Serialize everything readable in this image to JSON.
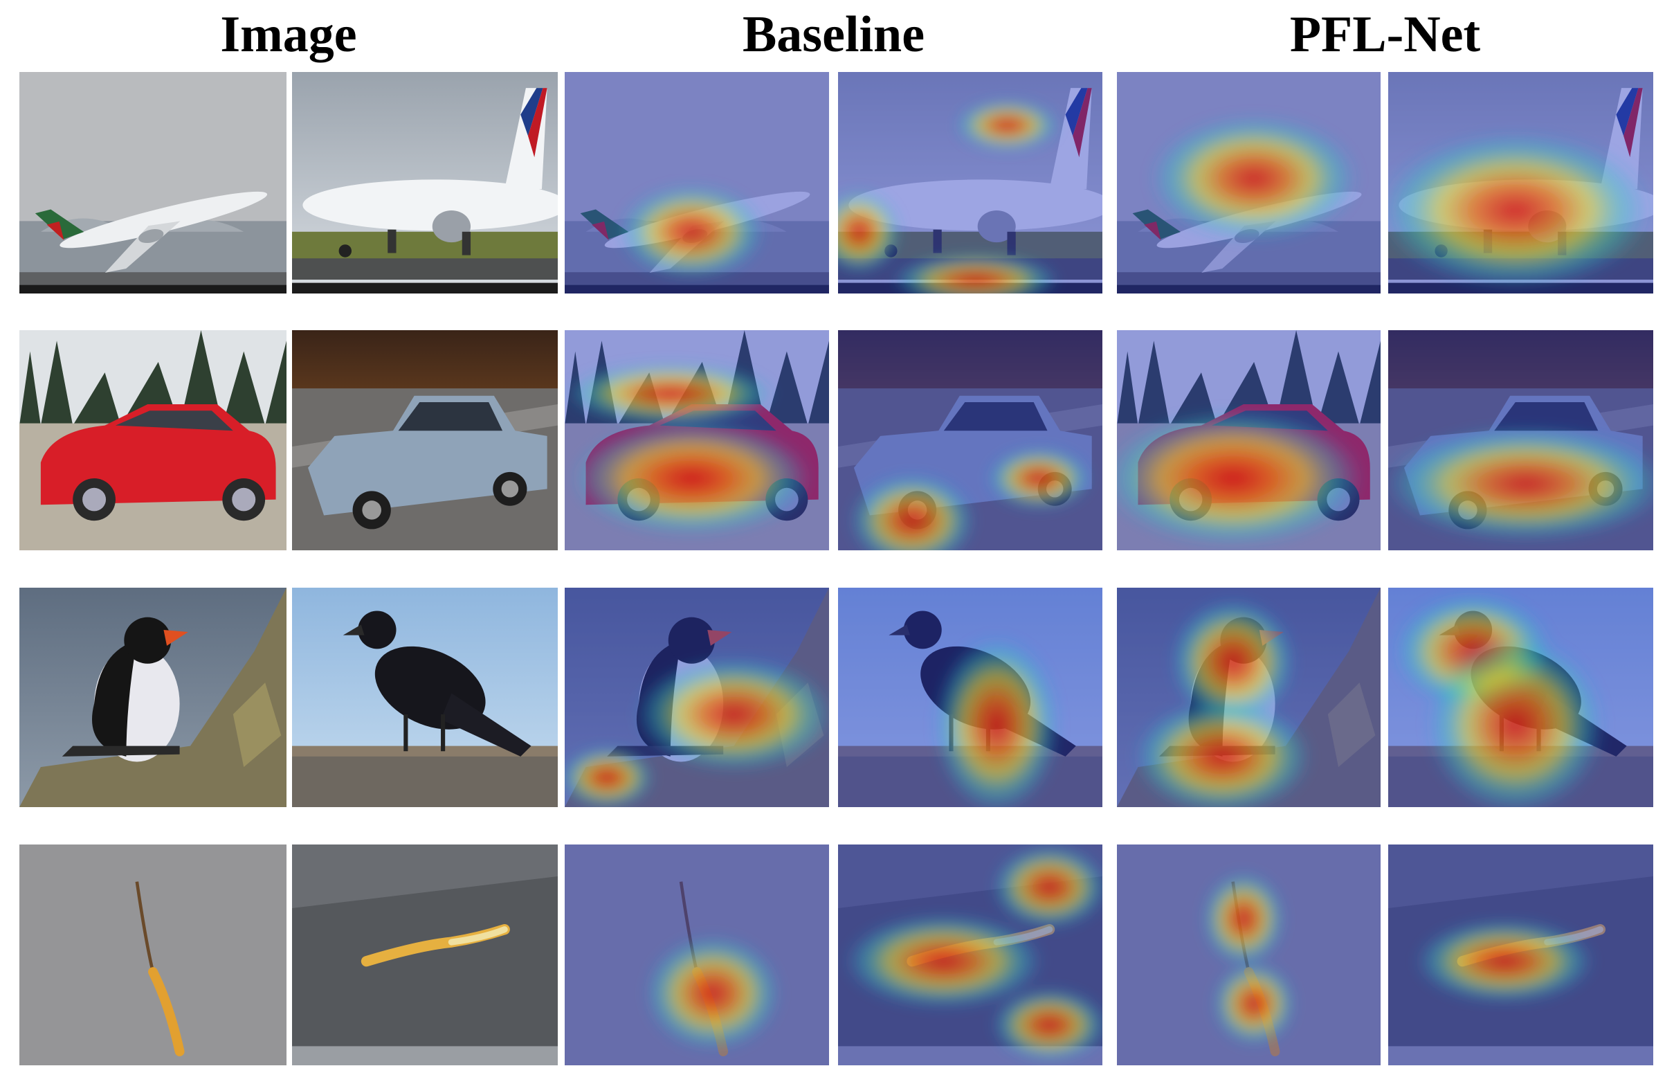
{
  "header": {
    "columns": [
      "Image",
      "Baseline",
      "PFL-Net"
    ]
  }
}
